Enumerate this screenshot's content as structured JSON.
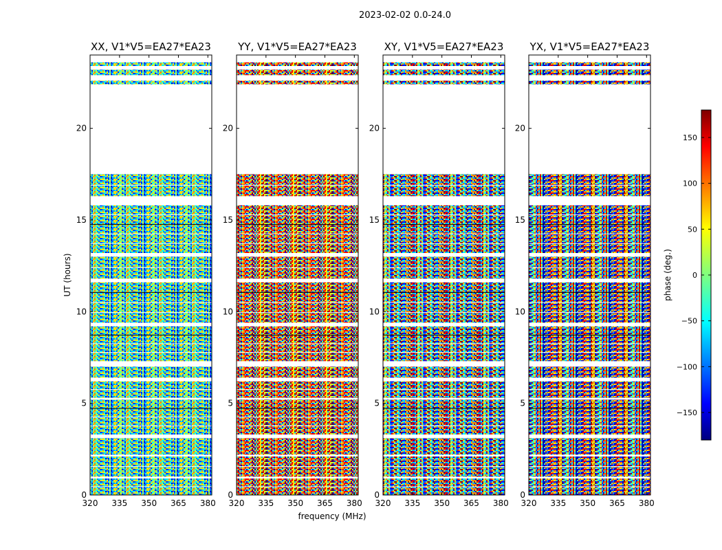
{
  "figure": {
    "suptitle": "2023-02-02 0.0-24.0"
  },
  "chart_data": {
    "type": "heatmap",
    "panels": [
      {
        "title": "XX, V1*V5=EA27*EA23",
        "pol": "XX"
      },
      {
        "title": "YY, V1*V5=EA27*EA23",
        "pol": "YY"
      },
      {
        "title": "XY, V1*V5=EA27*EA23",
        "pol": "XY"
      },
      {
        "title": "YX, V1*V5=EA27*EA23",
        "pol": "YX"
      }
    ],
    "xlabel": "frequency (MHz)",
    "ylabel": "UT (hours)",
    "xlim": [
      320,
      382
    ],
    "ylim": [
      0,
      24
    ],
    "xticks": [
      320,
      335,
      350,
      365,
      380
    ],
    "yticks": [
      0,
      5,
      10,
      15,
      20
    ],
    "colorbar": {
      "label": "phase (deg.)",
      "range": [
        -180,
        180
      ],
      "ticks": [
        150,
        100,
        50,
        0,
        -50,
        -100,
        -150
      ],
      "tick_labels": [
        "150",
        "100",
        "50",
        "0",
        "−50",
        "−100",
        "−150"
      ],
      "colormap": "jet"
    },
    "data_rows_ut": [
      [
        0.0,
        0.9
      ],
      [
        1.0,
        2.1
      ],
      [
        2.2,
        3.1
      ],
      [
        3.3,
        5.2
      ],
      [
        5.3,
        6.2
      ],
      [
        6.4,
        7.0
      ],
      [
        7.3,
        9.2
      ],
      [
        9.4,
        11.6
      ],
      [
        11.8,
        13.0
      ],
      [
        13.2,
        15.8
      ],
      [
        16.3,
        17.5
      ],
      [
        22.4,
        22.6
      ],
      [
        22.9,
        23.2
      ],
      [
        23.4,
        23.6
      ]
    ],
    "empty_range_ut": [
      17.5,
      22.4
    ]
  }
}
